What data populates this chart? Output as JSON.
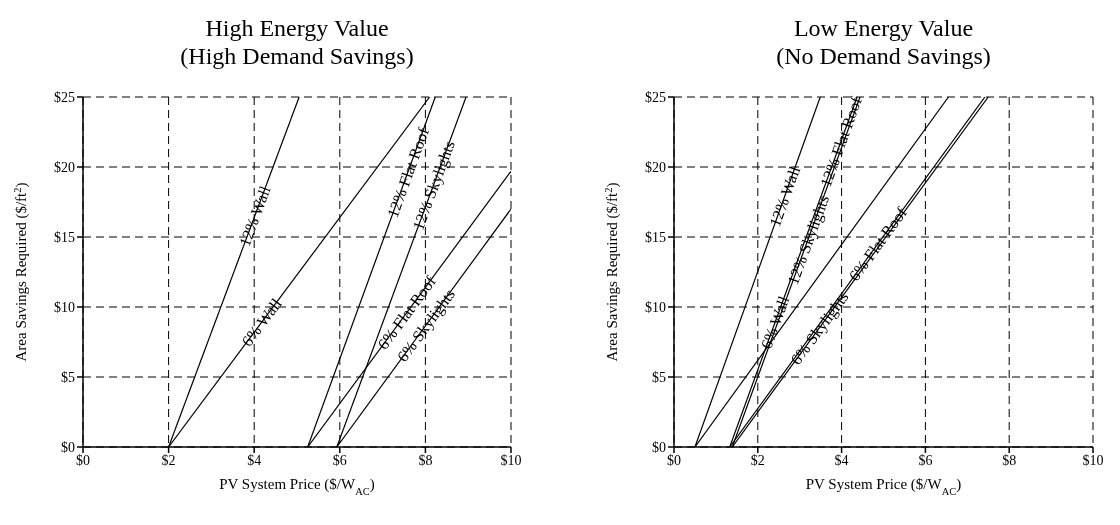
{
  "chart_data": [
    {
      "type": "line",
      "title": "High Energy Value\n(High Demand Savings)",
      "xlabel": "PV System Price ($/W$_{AC}$)",
      "ylabel": "Area Savings Required ($/ft$^{2}$)",
      "xlim": [
        0,
        10
      ],
      "ylim": [
        0,
        25
      ],
      "xticks": [
        {
          "value": 0,
          "label": "$0"
        },
        {
          "value": 2,
          "label": "$2"
        },
        {
          "value": 4,
          "label": "$4"
        },
        {
          "value": 6,
          "label": "$6"
        },
        {
          "value": 8,
          "label": "$8"
        },
        {
          "value": 10,
          "label": "$10"
        }
      ],
      "yticks": [
        {
          "value": 0,
          "label": "$0"
        },
        {
          "value": 5,
          "label": "$5"
        },
        {
          "value": 10,
          "label": "$10"
        },
        {
          "value": 15,
          "label": "$15"
        },
        {
          "value": 20,
          "label": "$20"
        },
        {
          "value": 25,
          "label": "$25"
        }
      ],
      "grid": true,
      "marker": "none",
      "line_style": "solid",
      "series": [
        {
          "color": "#000000",
          "x": [
            2,
            5.05
          ],
          "values": [
            0,
            25
          ]
        },
        {
          "color": "#000000",
          "x": [
            2,
            8.1
          ],
          "values": [
            0,
            25
          ]
        },
        {
          "color": "#000000",
          "x": [
            5.25,
            8.23
          ],
          "values": [
            0,
            25
          ]
        },
        {
          "color": "#000000",
          "x": [
            5.25,
            10
          ],
          "values": [
            0,
            19.7
          ]
        },
        {
          "color": "#000000",
          "x": [
            5.93,
            8.95
          ],
          "values": [
            0,
            25
          ]
        },
        {
          "color": "#000000",
          "x": [
            5.93,
            10
          ],
          "values": [
            0,
            17
          ]
        }
      ],
      "annotations": [
        {
          "text": "12% Wall",
          "x": 4.01,
          "y": 16.5
        },
        {
          "text": "6% Wall",
          "x": 4.17,
          "y": 8.9
        },
        {
          "text": "12% Flat Roof",
          "x": 7.59,
          "y": 19.6
        },
        {
          "text": "12% Skylights",
          "x": 8.19,
          "y": 18.7
        },
        {
          "text": "6% Flat Roof",
          "x": 7.56,
          "y": 9.6
        },
        {
          "text": "6% Skylights",
          "x": 8.01,
          "y": 8.7
        }
      ]
    },
    {
      "type": "line",
      "title": "Low Energy Value\n(No Demand Savings)",
      "xlabel": "PV System Price ($/W$_{AC}$)",
      "ylabel": "Area Savings Required ($/ft$^{2}$)",
      "xlim": [
        0,
        10
      ],
      "ylim": [
        0,
        25
      ],
      "xticks": [
        {
          "value": 0,
          "label": "$0"
        },
        {
          "value": 2,
          "label": "$2"
        },
        {
          "value": 4,
          "label": "$4"
        },
        {
          "value": 6,
          "label": "$6"
        },
        {
          "value": 8,
          "label": "$8"
        },
        {
          "value": 10,
          "label": "$10"
        }
      ],
      "yticks": [
        {
          "value": 0,
          "label": "$0"
        },
        {
          "value": 5,
          "label": "$5"
        },
        {
          "value": 10,
          "label": "$10"
        },
        {
          "value": 15,
          "label": "$15"
        },
        {
          "value": 20,
          "label": "$20"
        },
        {
          "value": 25,
          "label": "$25"
        }
      ],
      "grid": true,
      "marker": "none",
      "line_style": "solid",
      "series": [
        {
          "color": "#000000",
          "x": [
            0.5,
            3.49
          ],
          "values": [
            0,
            25
          ]
        },
        {
          "color": "#000000",
          "x": [
            0.5,
            6.55
          ],
          "values": [
            0,
            25
          ]
        },
        {
          "color": "#000000",
          "x": [
            1.33,
            4.37
          ],
          "values": [
            0,
            25
          ]
        },
        {
          "color": "#000000",
          "x": [
            1.39,
            4.44
          ],
          "values": [
            0,
            25
          ]
        },
        {
          "color": "#000000",
          "x": [
            1.33,
            7.42
          ],
          "values": [
            0,
            25
          ]
        },
        {
          "color": "#000000",
          "x": [
            1.39,
            7.5
          ],
          "values": [
            0,
            25
          ]
        }
      ],
      "annotations": [
        {
          "text": "12% Wall",
          "x": 2.64,
          "y": 17.9
        },
        {
          "text": "6% Wall",
          "x": 2.41,
          "y": 8.9
        },
        {
          "text": "12% Flat Roof",
          "x": 3.98,
          "y": 21.8
        },
        {
          "text": "12% Skylights",
          "x": 3.2,
          "y": 14.8
        },
        {
          "text": "6% Flat Roof",
          "x": 4.86,
          "y": 14.5
        },
        {
          "text": "6% Skylights",
          "x": 3.47,
          "y": 8.5
        }
      ]
    }
  ]
}
